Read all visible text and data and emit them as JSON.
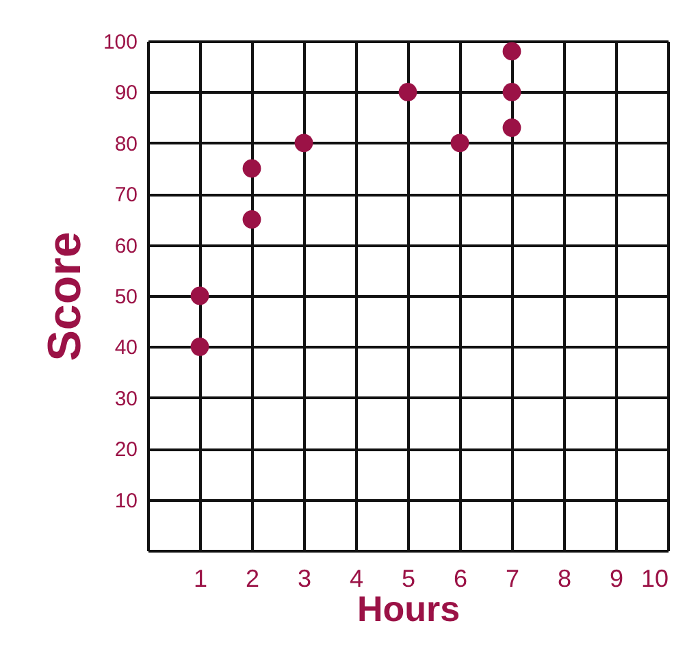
{
  "chart_data": {
    "type": "scatter",
    "xlabel": "Hours",
    "ylabel": "Score",
    "x": [
      1,
      1,
      2,
      2,
      3,
      5,
      6,
      7,
      7,
      7
    ],
    "values": [
      50,
      40,
      75,
      65,
      80,
      90,
      80,
      98,
      90,
      83
    ],
    "color": "#9b1246",
    "marker": "circle",
    "grid": true,
    "xlim": [
      0,
      10
    ],
    "xticks": [
      1,
      2,
      3,
      4,
      5,
      6,
      7,
      8,
      9,
      10
    ],
    "ylim": [
      0,
      100
    ],
    "yticks": [
      10,
      20,
      30,
      40,
      50,
      60,
      70,
      80,
      90,
      100
    ]
  }
}
